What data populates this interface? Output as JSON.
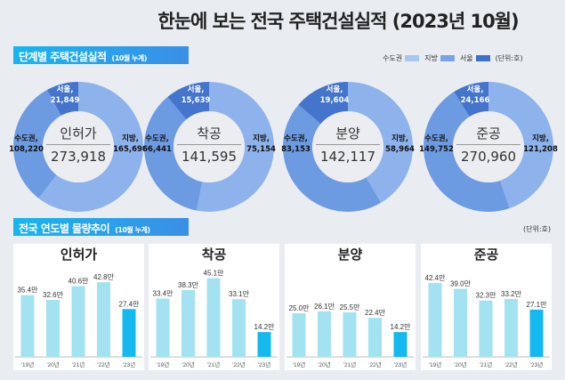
{
  "title": "한눈에 보는 전국 주택건설실적 (2023년 10월)",
  "section1": {
    "title": "단계별 주택건설실적",
    "note": "(10월 누계)"
  },
  "section2": {
    "title": "전국 연도별 물량추이",
    "note": "(10월 누계)"
  },
  "legend": {
    "items": [
      {
        "label": "수도권",
        "color": "#a9c6f0"
      },
      {
        "label": "지방",
        "color": "#7aa3e3"
      },
      {
        "label": "서울",
        "color": "#3f6fc8"
      }
    ],
    "unit": "(단위:호)"
  },
  "unit2": "(단위:호)",
  "colors": {
    "jibang": "#8db2ec",
    "sudo": "#6d9be2",
    "seoul": "#4574cc",
    "bar": "#a3e2f0",
    "bar_last": "#14b9ef"
  },
  "chart_data": [
    {
      "type": "pie",
      "name": "인허가",
      "total": "273,918",
      "slices": [
        {
          "label": "지방,",
          "value": 165698,
          "text": "165,698"
        },
        {
          "label": "수도권,",
          "value": 108220,
          "text": "108,220"
        },
        {
          "label": "서울,",
          "value": 21849,
          "text": "21,849",
          "subset_of": "수도권"
        }
      ]
    },
    {
      "type": "pie",
      "name": "착공",
      "total": "141,595",
      "slices": [
        {
          "label": "지방,",
          "value": 75154,
          "text": "75,154"
        },
        {
          "label": "수도권,",
          "value": 66441,
          "text": "66,441"
        },
        {
          "label": "서울,",
          "value": 15639,
          "text": "15,639",
          "subset_of": "수도권"
        }
      ]
    },
    {
      "type": "pie",
      "name": "분양",
      "total": "142,117",
      "slices": [
        {
          "label": "지방,",
          "value": 58964,
          "text": "58,964"
        },
        {
          "label": "수도권,",
          "value": 83153,
          "text": "83,153"
        },
        {
          "label": "서울,",
          "value": 19604,
          "text": "19,604",
          "subset_of": "수도권"
        }
      ]
    },
    {
      "type": "pie",
      "name": "준공",
      "total": "270,960",
      "slices": [
        {
          "label": "지방,",
          "value": 121208,
          "text": "121,208"
        },
        {
          "label": "수도권,",
          "value": 149752,
          "text": "149,752"
        },
        {
          "label": "서울,",
          "value": 24166,
          "text": "24,166",
          "subset_of": "수도권"
        }
      ]
    },
    {
      "type": "bar",
      "title": "인허가",
      "categories": [
        "'19년",
        "'20년",
        "'21년",
        "'22년",
        "'23년"
      ],
      "values": [
        35.4,
        32.6,
        40.6,
        42.8,
        27.4
      ],
      "labels": [
        "35.4만",
        "32.6만",
        "40.6만",
        "42.8만",
        "27.4만"
      ],
      "ylim": [
        0,
        50
      ]
    },
    {
      "type": "bar",
      "title": "착공",
      "categories": [
        "'19년",
        "'20년",
        "'21년",
        "'22년",
        "'23년"
      ],
      "values": [
        33.4,
        38.3,
        45.1,
        33.1,
        14.2
      ],
      "labels": [
        "33.4만",
        "38.3만",
        "45.1만",
        "33.1만",
        "14.2만"
      ],
      "ylim": [
        0,
        50
      ]
    },
    {
      "type": "bar",
      "title": "분양",
      "categories": [
        "'19년",
        "'20년",
        "'21년",
        "'22년",
        "'23년"
      ],
      "values": [
        25.0,
        26.1,
        25.5,
        22.4,
        14.2
      ],
      "labels": [
        "25.0만",
        "26.1만",
        "25.5만",
        "22.4만",
        "14.2만"
      ],
      "ylim": [
        0,
        50
      ]
    },
    {
      "type": "bar",
      "title": "준공",
      "categories": [
        "'19년",
        "'20년",
        "'21년",
        "'22년",
        "'23년"
      ],
      "values": [
        42.4,
        39.0,
        32.3,
        33.2,
        27.1
      ],
      "labels": [
        "42.4만",
        "39.0만",
        "32.3만",
        "33.2만",
        "27.1만"
      ],
      "ylim": [
        0,
        50
      ]
    }
  ]
}
